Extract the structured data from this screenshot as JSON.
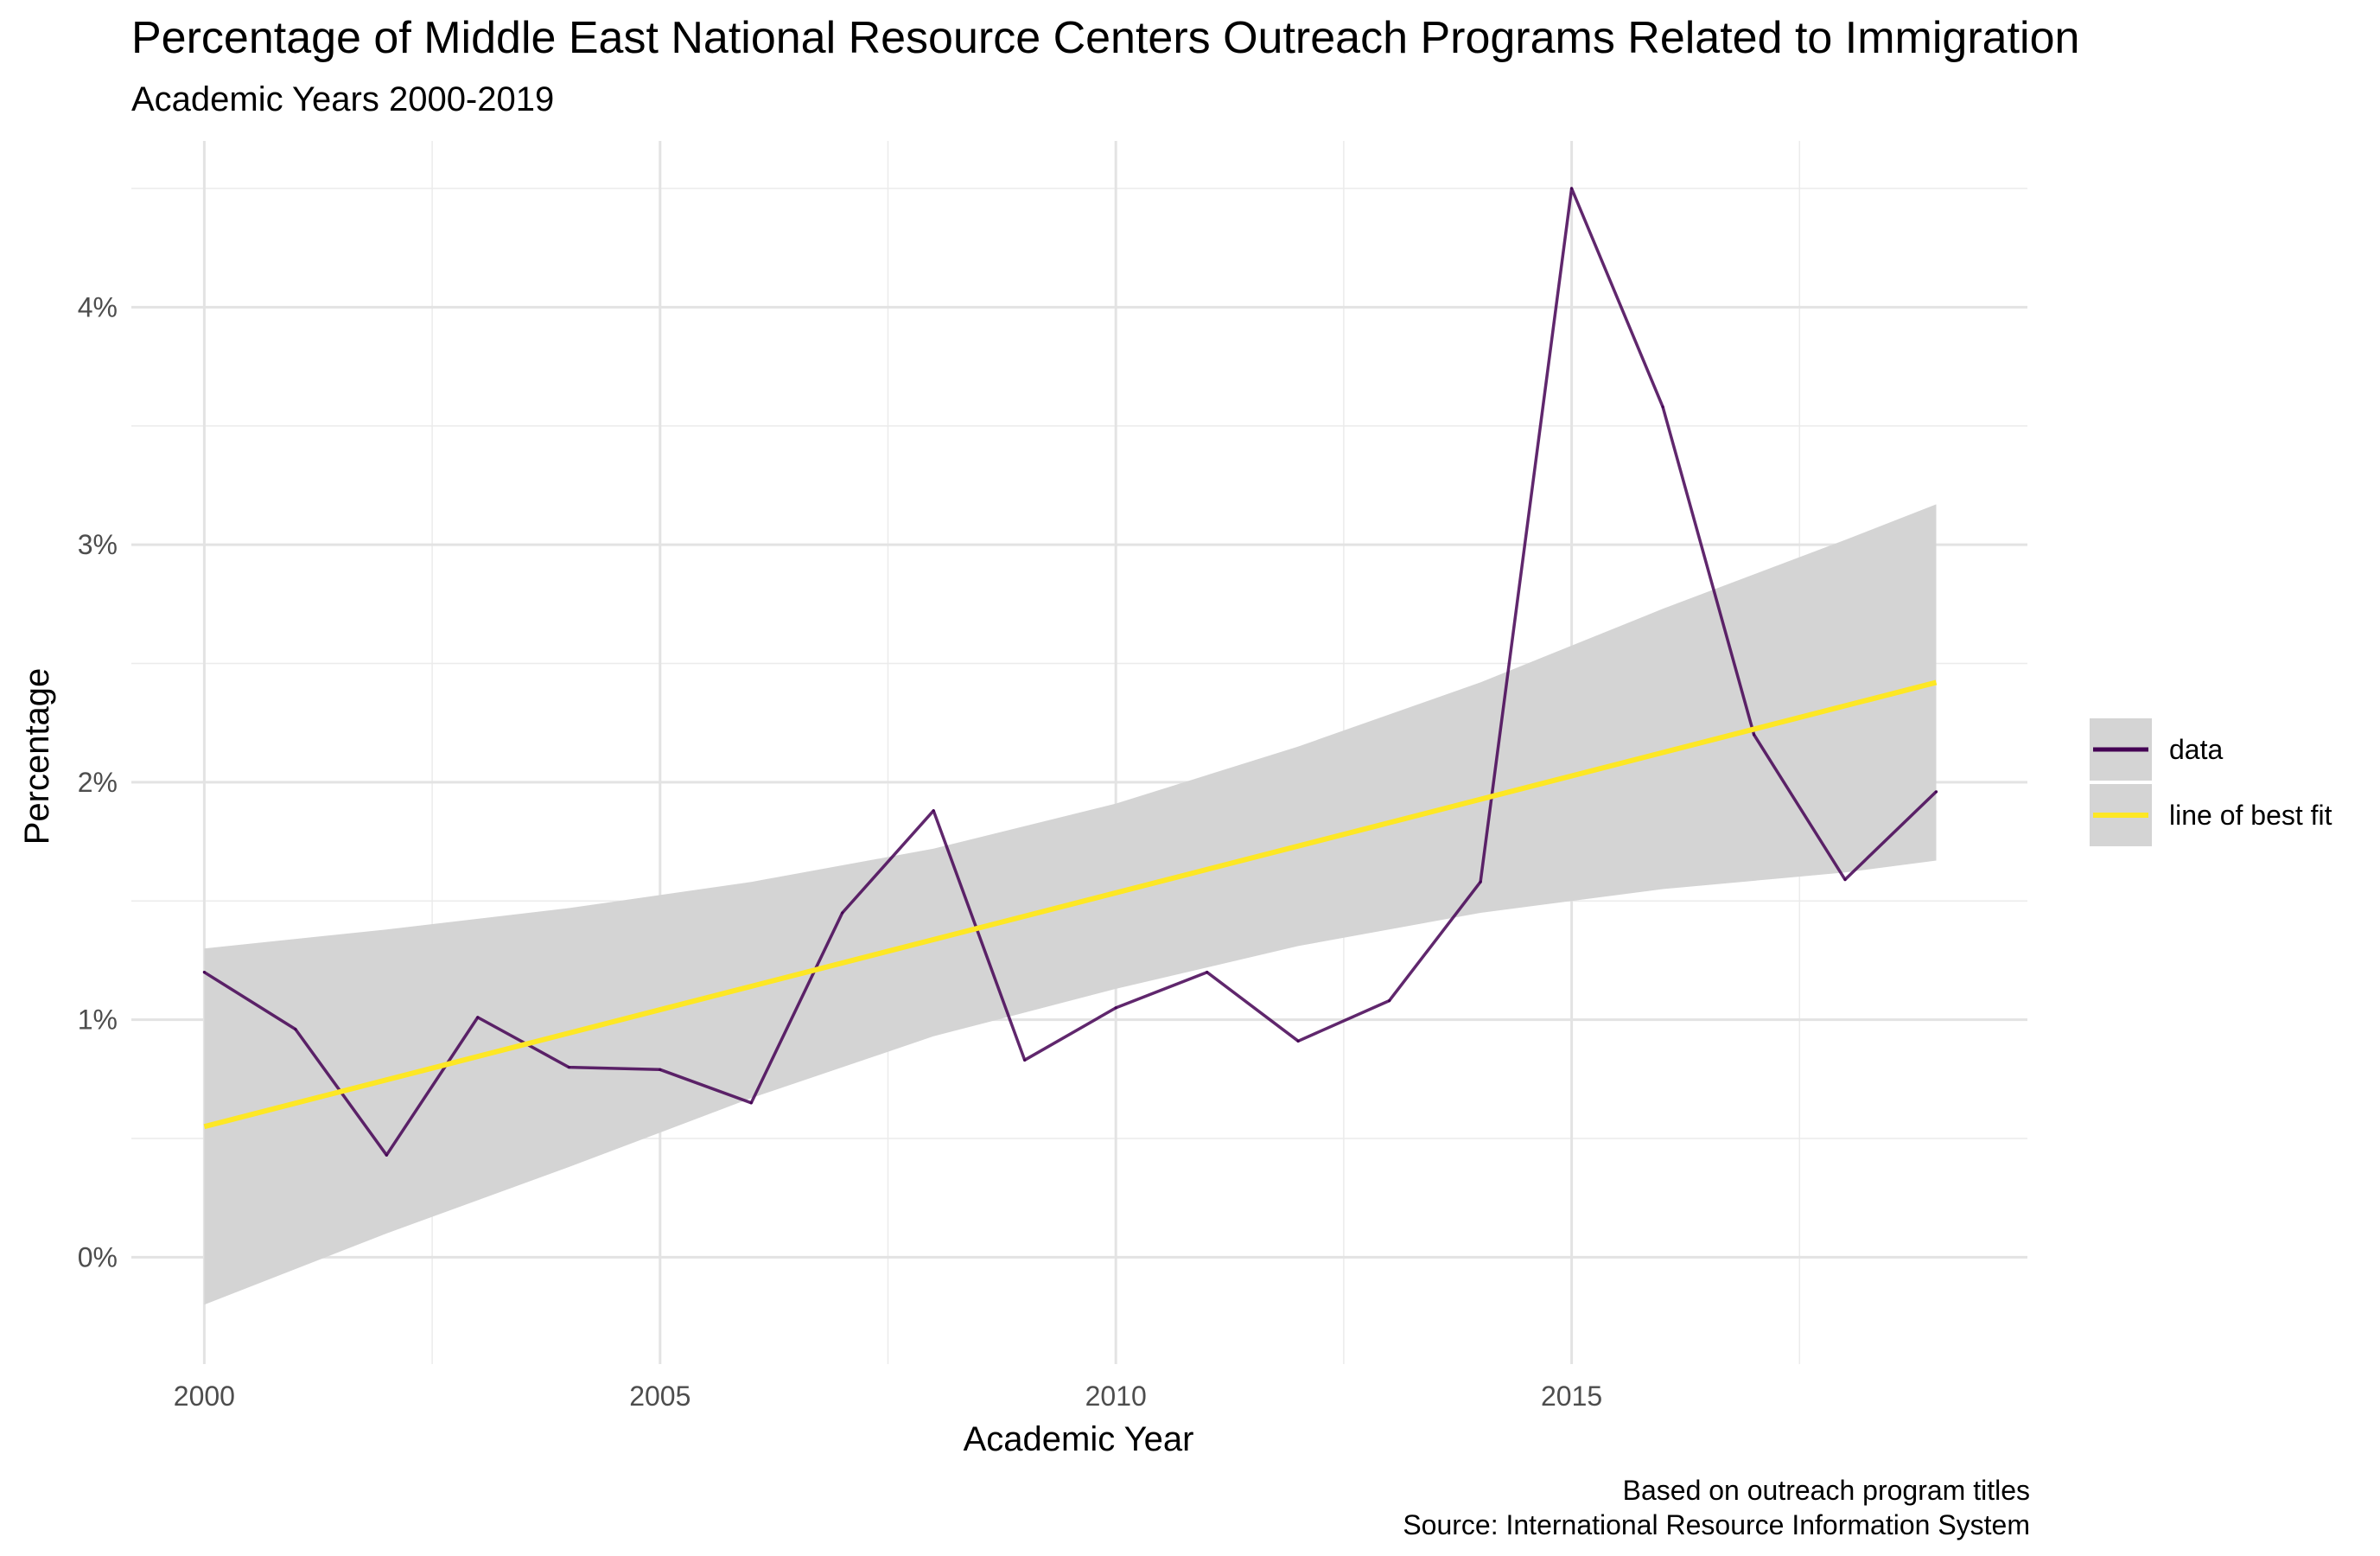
{
  "chart_data": {
    "type": "line",
    "title": "Percentage of Middle East National Resource Centers Outreach Programs Related to Immigration",
    "subtitle": "Academic Years 2000-2019",
    "xlabel": "Academic Year",
    "ylabel": "Percentage",
    "caption": [
      "Based on outreach program titles",
      "Source: International Resource Information System"
    ],
    "xlim": [
      1999.2,
      2020.0
    ],
    "ylim": [
      -0.45,
      4.7
    ],
    "x_ticks": [
      2000,
      2005,
      2010,
      2015
    ],
    "x_tick_labels": [
      "2000",
      "2005",
      "2010",
      "2015"
    ],
    "y_ticks": [
      0,
      1,
      2,
      3,
      4
    ],
    "y_tick_labels": [
      "0%",
      "1%",
      "2%",
      "3%",
      "4%"
    ],
    "grid": true,
    "legend_position": "right",
    "x": [
      2000,
      2001,
      2002,
      2003,
      2004,
      2005,
      2006,
      2007,
      2008,
      2009,
      2010,
      2011,
      2012,
      2013,
      2014,
      2015,
      2016,
      2017,
      2018,
      2019
    ],
    "series": [
      {
        "name": "data",
        "color": "#440154",
        "values": [
          1.2,
          0.96,
          0.43,
          1.01,
          0.8,
          0.79,
          0.65,
          1.45,
          1.88,
          0.83,
          1.05,
          1.2,
          0.91,
          1.08,
          1.58,
          4.5,
          3.58,
          2.2,
          1.59,
          1.96
        ]
      },
      {
        "name": "line of best fit",
        "color": "#FDE725",
        "start": [
          2000,
          0.55
        ],
        "end": [
          2019,
          2.42
        ]
      }
    ],
    "confidence_band": {
      "color": "#d4d4d4",
      "x": [
        2000,
        2002,
        2004,
        2006,
        2008,
        2010,
        2012,
        2014,
        2016,
        2018,
        2019
      ],
      "upper": [
        1.3,
        1.38,
        1.47,
        1.58,
        1.72,
        1.91,
        2.15,
        2.42,
        2.73,
        3.02,
        3.17
      ],
      "lower": [
        -0.2,
        0.1,
        0.38,
        0.67,
        0.93,
        1.13,
        1.31,
        1.45,
        1.55,
        1.62,
        1.67
      ]
    }
  }
}
